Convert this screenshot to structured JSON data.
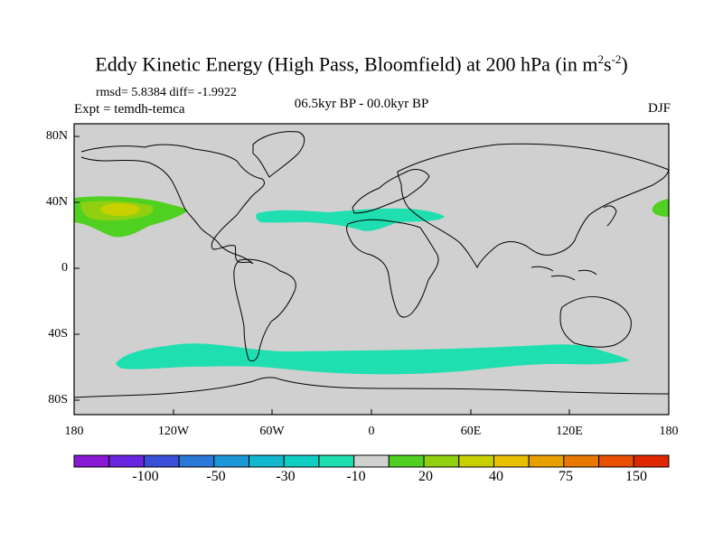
{
  "title_main": "Eddy Kinetic Energy (High Pass, Bloomfield) at 200 hPa (in m",
  "title_sup1": "2",
  "title_mid": "s",
  "title_sup2": "-2",
  "title_end": ")",
  "stats": "rmsd= 5.8384 diff= -1.9922",
  "experiment": "Expt = temdh-temca",
  "period": "06.5kyr BP - 00.0kyr BP",
  "season": "DJF",
  "lat_labels": [
    "80N",
    "40N",
    "0",
    "40S",
    "80S"
  ],
  "lon_labels": [
    "180",
    "120W",
    "60W",
    "0",
    "60E",
    "120E",
    "180"
  ],
  "colorbar": {
    "colors": [
      "#8a19d6",
      "#6a25e0",
      "#3a4fd8",
      "#2a78d8",
      "#1c98d8",
      "#12b8d0",
      "#0fcfc5",
      "#1fdfb0",
      "#d0d0d0",
      "#50d020",
      "#90d010",
      "#c8d000",
      "#e8c000",
      "#e8a000",
      "#e87800",
      "#e85000",
      "#e02800"
    ],
    "labels": [
      "-100",
      "-50",
      "-30",
      "-10",
      "20",
      "40",
      "75",
      "150"
    ]
  },
  "colors": {
    "background": "#d0d0d0",
    "negative_band": "#1fdfb0",
    "positive_low": "#50d020",
    "positive_mid": "#90d010",
    "positive_high": "#c8d000"
  }
}
